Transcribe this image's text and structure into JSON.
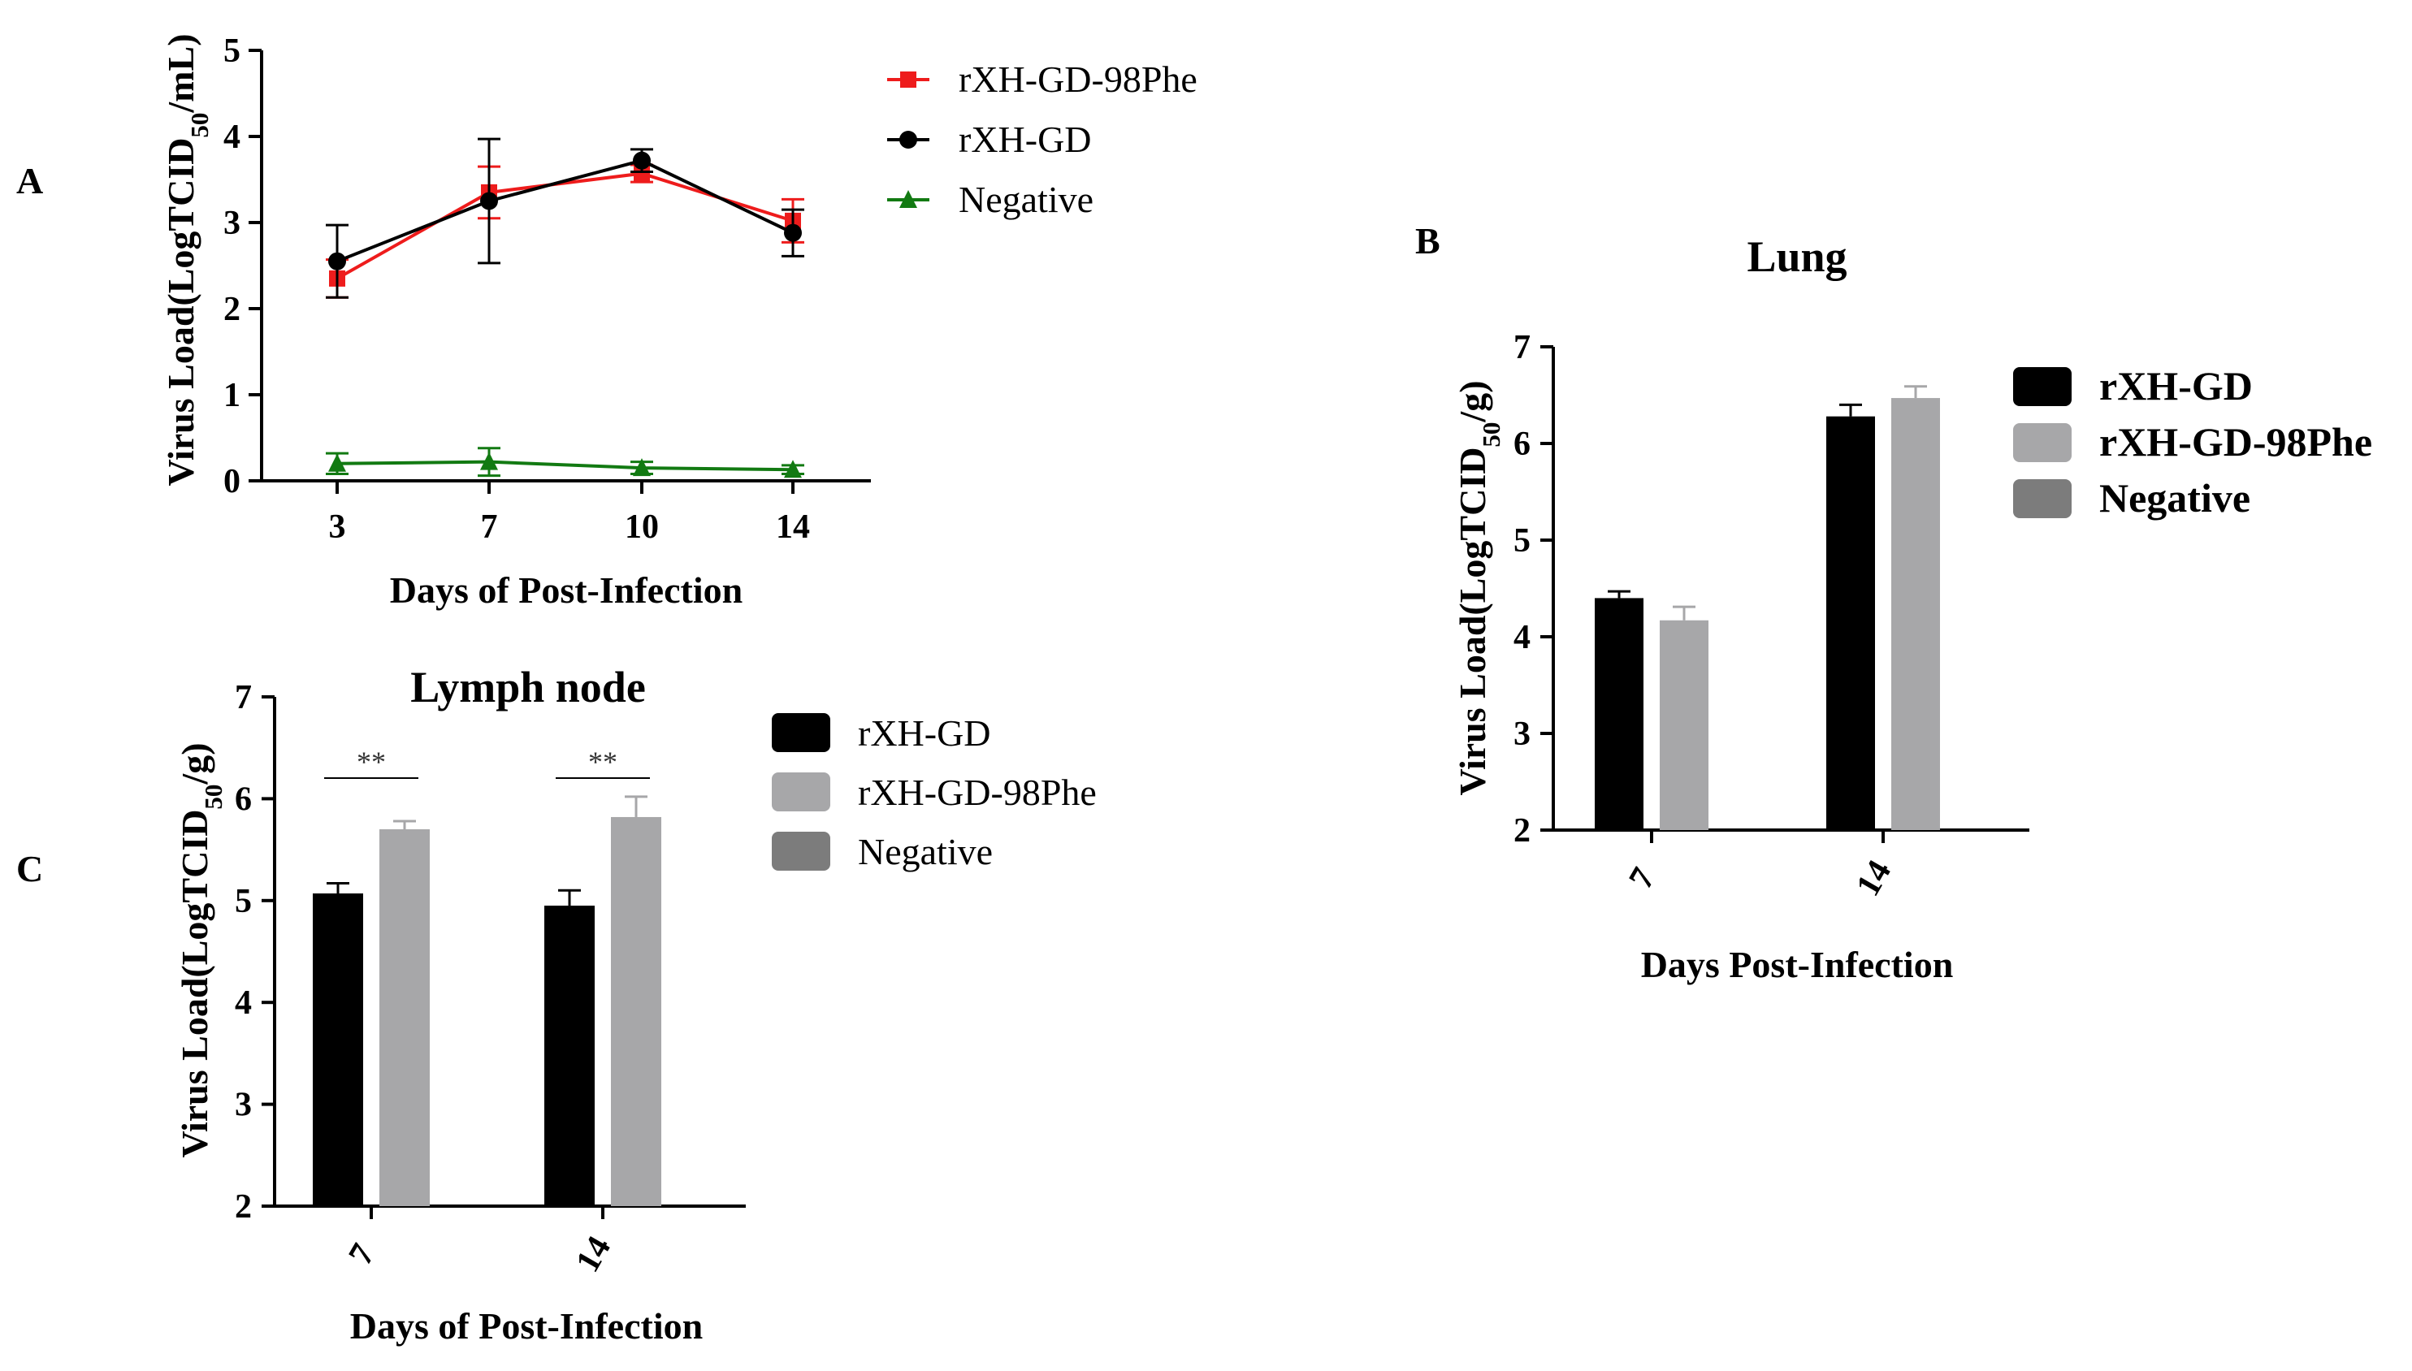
{
  "panels": {
    "A": {
      "letter": "A"
    },
    "B": {
      "letter": "B"
    },
    "C": {
      "letter": "C"
    }
  },
  "chart_data": [
    {
      "id": "A",
      "type": "line",
      "title": "",
      "xlabel": "Days of Post-Infection",
      "ylabel": "Virus Load(LogTCID50/mL)",
      "ylabel_parts": {
        "pre": "Virus Load(LogTCID",
        "sub": "50",
        "post": "/mL)"
      },
      "categories": [
        "3",
        "7",
        "10",
        "14"
      ],
      "ylim": [
        0,
        5
      ],
      "yticks": [
        "0",
        "1",
        "2",
        "3",
        "4",
        "5"
      ],
      "legend_position": "top-right",
      "series": [
        {
          "name": "rXH-GD-98Phe",
          "color": "#ee1c1c",
          "marker": "square",
          "values": [
            2.35,
            3.35,
            3.57,
            3.02
          ],
          "errors": [
            0.22,
            0.3,
            0.1,
            0.25
          ]
        },
        {
          "name": "rXH-GD",
          "color": "#000000",
          "marker": "circle",
          "values": [
            2.55,
            3.25,
            3.72,
            2.88
          ],
          "errors": [
            0.42,
            0.72,
            0.13,
            0.27
          ]
        },
        {
          "name": "Negative",
          "color": "#127a12",
          "marker": "triangle",
          "values": [
            0.2,
            0.22,
            0.15,
            0.13
          ],
          "errors": [
            0.12,
            0.16,
            0.07,
            0.05
          ]
        }
      ]
    },
    {
      "id": "B",
      "type": "bar",
      "title": "Lung",
      "xlabel": "Days Post-Infection",
      "ylabel": "Virus Load(LogTCID50/g)",
      "ylabel_parts": {
        "pre": "Virus Load(LogTCID",
        "sub": "50",
        "post": "/g)"
      },
      "categories": [
        "7",
        "14"
      ],
      "ylim": [
        2,
        7
      ],
      "yticks": [
        "2",
        "3",
        "4",
        "5",
        "6",
        "7"
      ],
      "legend_position": "top-right",
      "series": [
        {
          "name": "rXH-GD",
          "color": "#000000",
          "values": [
            4.4,
            6.28
          ],
          "errors": [
            0.07,
            0.12
          ]
        },
        {
          "name": "rXH-GD-98Phe",
          "color": "#a7a7a9",
          "values": [
            4.17,
            6.47
          ],
          "errors": [
            0.14,
            0.12
          ]
        },
        {
          "name": "Negative",
          "color": "#7c7c7c",
          "values": [
            null,
            null
          ],
          "errors": [
            null,
            null
          ]
        }
      ]
    },
    {
      "id": "C",
      "type": "bar",
      "title": "Lymph node",
      "xlabel": "Days of Post-Infection",
      "ylabel": "Virus Load(LogTCID50/g)",
      "ylabel_parts": {
        "pre": "Virus Load(LogTCID",
        "sub": "50",
        "post": "/g)"
      },
      "categories": [
        "7",
        "14"
      ],
      "ylim": [
        2,
        7
      ],
      "yticks": [
        "2",
        "3",
        "4",
        "5",
        "6",
        "7"
      ],
      "legend_position": "top-right",
      "annotations": [
        "**",
        "**"
      ],
      "series": [
        {
          "name": "rXH-GD",
          "color": "#000000",
          "values": [
            5.07,
            4.95
          ],
          "errors": [
            0.1,
            0.15
          ]
        },
        {
          "name": "rXH-GD-98Phe",
          "color": "#a7a7a9",
          "values": [
            5.7,
            5.82
          ],
          "errors": [
            0.08,
            0.2
          ]
        },
        {
          "name": "Negative",
          "color": "#7c7c7c",
          "values": [
            null,
            null
          ],
          "errors": [
            null,
            null
          ]
        }
      ]
    }
  ]
}
